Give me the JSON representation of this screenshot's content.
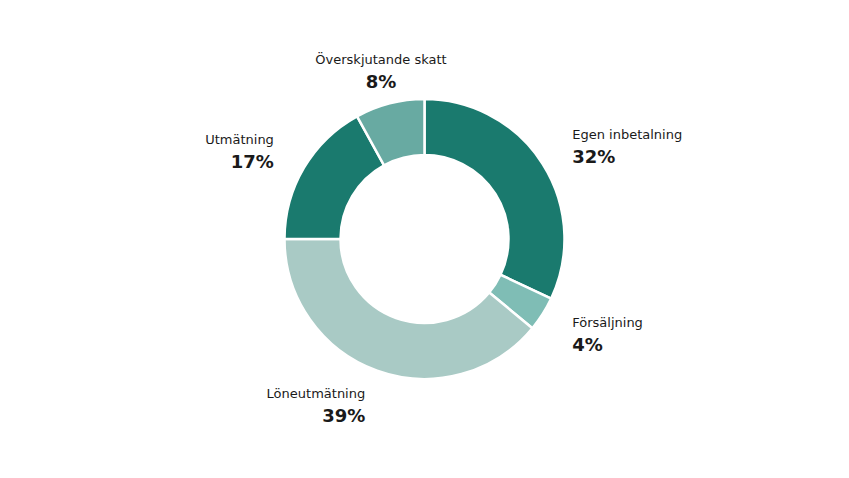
{
  "chart_data": {
    "type": "donut",
    "categories": [
      "Egen inbetalning",
      "Försäljning",
      "Löneutmätning",
      "Utmätning",
      "Överskjutande skatt"
    ],
    "values": [
      32,
      4,
      39,
      17,
      8
    ],
    "value_labels": [
      "32%",
      "4%",
      "39%",
      "17%",
      "8%"
    ],
    "colors": [
      "#1a7a6e",
      "#7fbdb5",
      "#a9cac5",
      "#1a7a6e",
      "#68aaa2"
    ],
    "data_labels": true
  }
}
